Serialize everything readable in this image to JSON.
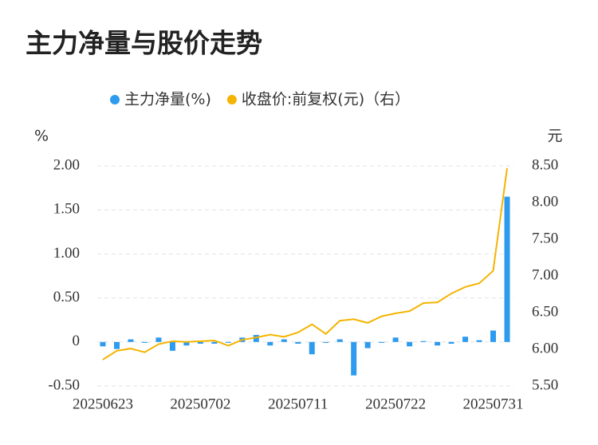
{
  "chart_data": {
    "type": "bar-line",
    "title": "主力净量与股价走势",
    "y_label": "%",
    "y2_label": "元",
    "categories": [
      "20250623",
      null,
      null,
      null,
      null,
      null,
      null,
      "20250702",
      null,
      null,
      null,
      null,
      null,
      null,
      "20250711",
      null,
      null,
      null,
      null,
      null,
      null,
      "20250722",
      null,
      null,
      null,
      null,
      null,
      null,
      "20250731",
      null
    ],
    "series": [
      {
        "name": "主力净量(%)",
        "color": "#2e9bee",
        "type": "bar",
        "values": [
          -0.05,
          -0.08,
          0.03,
          -0.01,
          0.05,
          -0.1,
          -0.04,
          -0.02,
          -0.02,
          -0.01,
          0.05,
          0.08,
          -0.04,
          0.03,
          -0.02,
          -0.14,
          -0.01,
          0.03,
          -0.38,
          -0.07,
          -0.01,
          0.05,
          -0.05,
          0.01,
          -0.04,
          -0.02,
          0.06,
          0.02,
          0.13,
          1.65
        ]
      },
      {
        "name": "收盘价:前复权(元)（右）",
        "color": "#f4b400",
        "type": "line",
        "axis": "y2",
        "values": [
          5.86,
          5.98,
          6.01,
          5.96,
          6.07,
          6.11,
          6.1,
          6.11,
          6.12,
          6.05,
          6.13,
          6.16,
          6.2,
          6.17,
          6.23,
          6.34,
          6.21,
          6.39,
          6.41,
          6.36,
          6.45,
          6.49,
          6.52,
          6.63,
          6.64,
          6.76,
          6.85,
          6.9,
          7.07,
          8.47
        ]
      }
    ],
    "ylim": [
      -0.5,
      2.0
    ],
    "yticks": [
      {
        "value": -0.5,
        "label": "-0.50"
      },
      0,
      {
        "value": 0.5,
        "label": "0.50"
      },
      {
        "value": 1.0,
        "label": "1.00"
      },
      {
        "value": 1.5,
        "label": "1.50"
      },
      {
        "value": 2.0,
        "label": "2.00"
      }
    ],
    "y2lim": [
      5.5,
      8.5
    ],
    "y2ticks": [
      {
        "value": 5.5,
        "label": "5.50"
      },
      {
        "value": 6.0,
        "label": "6.00"
      },
      {
        "value": 6.5,
        "label": "6.50"
      },
      {
        "value": 7.0,
        "label": "7.00"
      },
      {
        "value": 7.5,
        "label": "7.50"
      },
      {
        "value": 8.0,
        "label": "8.00"
      },
      {
        "value": 8.5,
        "label": "8.50"
      }
    ],
    "grid": true
  }
}
